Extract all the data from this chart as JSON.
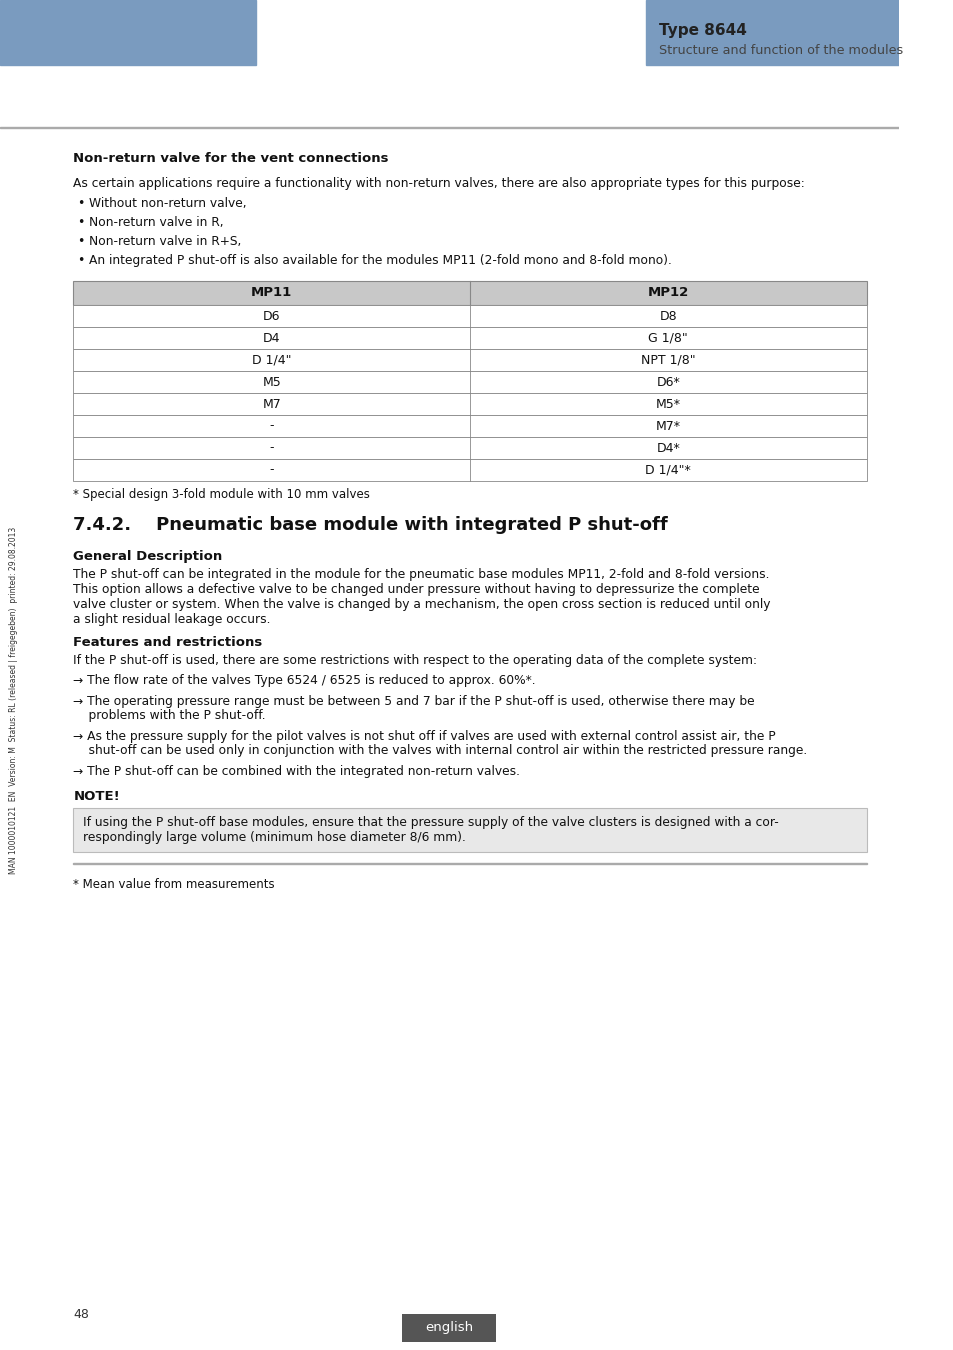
{
  "page_bg": "#ffffff",
  "header_blue": "#7a9bbf",
  "type_label": "Type 8644",
  "subtitle_label": "Structure and function of the modules",
  "section_heading": "Non-return valve for the vent connections",
  "intro_text": "As certain applications require a functionality with non-return valves, there are also appropriate types for this purpose:",
  "bullet_items": [
    "Without non-return valve,",
    "Non-return valve in R,",
    "Non-return valve in R+S,",
    "An integrated P shut-off is also available for the modules MP11 (2-fold mono and 8-fold mono)."
  ],
  "table_header": [
    "MP11",
    "MP12"
  ],
  "table_rows": [
    [
      "D6",
      "D8"
    ],
    [
      "D4",
      "G 1/8\""
    ],
    [
      "D 1/4\"",
      "NPT 1/8\""
    ],
    [
      "M5",
      "D6*"
    ],
    [
      "M7",
      "M5*"
    ],
    [
      "-",
      "M7*"
    ],
    [
      "-",
      "D4*"
    ],
    [
      "-",
      "D 1/4\"*"
    ]
  ],
  "table_note": "* Special design 3-fold module with 10 mm valves",
  "section742_heading": "7.4.2.    Pneumatic base module with integrated P shut-off",
  "gen_desc_heading": "General Description",
  "feat_heading": "Features and restrictions",
  "feat_intro": "If the P shut-off is used, there are some restrictions with respect to the operating data of the complete system:",
  "note_heading": "NOTE!",
  "footnote": "* Mean value from measurements",
  "page_number": "48",
  "footer_label": "english",
  "sidebar_text": "MAN 1000010121  EN  Version: M  Status: RL (released | freigegeben)  printed: 29.08.2013",
  "table_header_bg": "#c8c8c8",
  "table_border": "#888888",
  "note_bg": "#e8e8e8"
}
